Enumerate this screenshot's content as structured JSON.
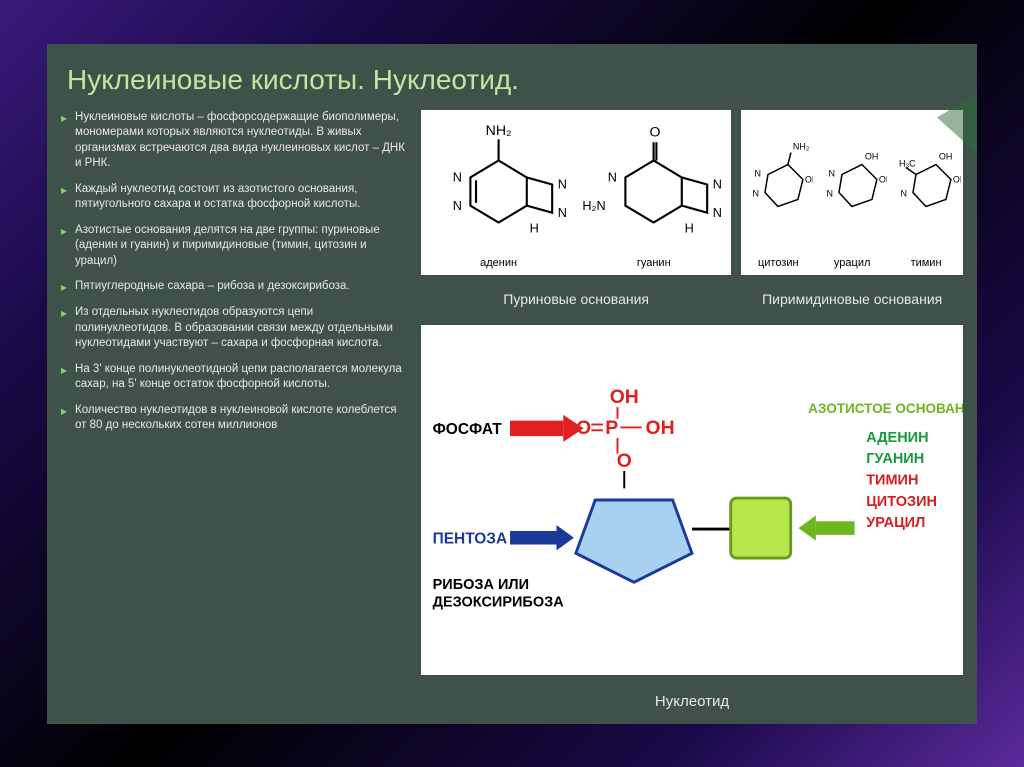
{
  "title": "Нуклеиновые кислоты. Нуклеотид.",
  "bullets": [
    "Нуклеиновые кислоты – фосфорсодержащие биополимеры, мономерами которых являются нуклеотиды. В живых организмах встречаются два вида нуклеиновых кислот – ДНК и РНК.",
    "Каждый нуклеотид состоит из азотистого основания, пятиугольного сахара и остатка фосфорной кислоты.",
    "Азотистые основания делятся на две группы: пуриновые (аденин и гуанин) и пиримидиновые (тимин, цитозин и урацил)",
    "Пятиуглеродные сахара – рибоза и дезоксирибоза.",
    "Из отдельных нуклеотидов образуются цепи полинуклеотидов. В образовании связи между отдельными нуклеотидами участвуют – сахара и фосфорная кислота.",
    "На 3' конце полинуклеотидной цепи располагается молекула сахар, на 5' конце остаток фосфорной кислоты.",
    "Количество нуклеотидов в нуклеиновой кислоте колеблется от 80 до нескольких сотен миллионов"
  ],
  "bases": {
    "purine": {
      "caption": "Пуриновые основания",
      "items": [
        "аденин",
        "гуанин"
      ]
    },
    "pyrimidine": {
      "caption": "Пиримидиновые основания",
      "items": [
        "цитозин",
        "урацил",
        "тимин"
      ]
    }
  },
  "nucleotide": {
    "caption": "Нуклеотид",
    "phosphate_label": "ФОСФАТ",
    "pentose_label": "ПЕНТОЗА",
    "sugar_label": "РИБОЗА ИЛИ",
    "sugar_label2": "ДЕЗОКСИРИБОЗА",
    "base_label": "АЗОТИСТОЕ ОСНОВАНИЕ",
    "base_list": [
      {
        "text": "АДЕНИН",
        "color": "#1a9a3a"
      },
      {
        "text": "ГУАНИН",
        "color": "#1a9a3a"
      },
      {
        "text": "ТИМИН",
        "color": "#d62020"
      },
      {
        "text": "ЦИТОЗИН",
        "color": "#d62020"
      },
      {
        "text": "УРАЦИЛ",
        "color": "#d62020"
      }
    ],
    "phosphate_formula": {
      "top": "OH",
      "mid_left": "O",
      "mid_p": "P",
      "mid_right": "OH",
      "bot": "O"
    },
    "colors": {
      "phosphate_arrow": "#e02020",
      "pentose_arrow": "#1a3a9a",
      "base_arrow": "#6ab81e",
      "pentose_fill": "#a8d0f0",
      "pentose_stroke": "#1a3a9a",
      "base_fill": "#b5e84a",
      "base_stroke": "#6a9a1a",
      "formula_color": "#e02020"
    }
  },
  "style": {
    "slide_bg": "#3e5249",
    "title_color": "#bfe8a0",
    "text_color": "#e8e8e8",
    "bullet_color": "#7fd85a"
  }
}
